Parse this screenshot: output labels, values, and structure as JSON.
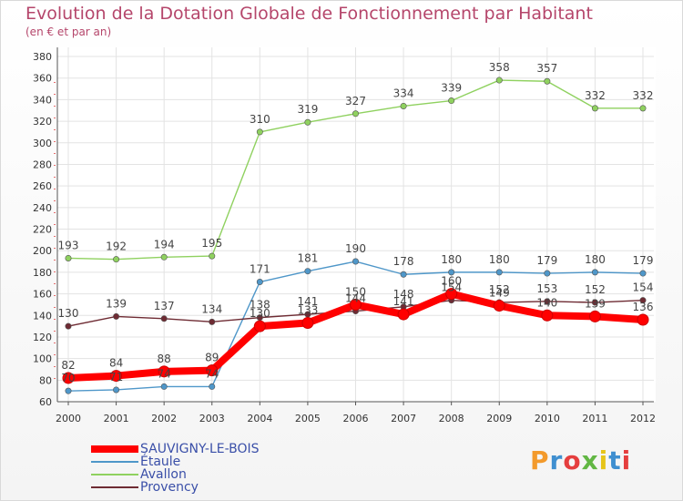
{
  "header": {
    "title": "Evolution de la Dotation Globale de Fonctionnement par Habitant",
    "subtitle": "(en € et par an)"
  },
  "brand": {
    "text": "Proxiti",
    "colors": [
      "#f39a2b",
      "#3f8fd0",
      "#e53e3e",
      "#62b744",
      "#e6c419",
      "#3f8fd0",
      "#e53e3e"
    ]
  },
  "chart_data": {
    "type": "line",
    "title": "Evolution de la Dotation Globale de Fonctionnement par Habitant",
    "subtitle": "(en € et par an)",
    "xlabel": "",
    "ylabel": "",
    "x": [
      "2000",
      "2001",
      "2002",
      "2003",
      "2004",
      "2005",
      "2006",
      "2007",
      "2008",
      "2009",
      "2010",
      "2011",
      "2012"
    ],
    "ylim": [
      60,
      380
    ],
    "yticks": [
      60,
      80,
      100,
      120,
      140,
      160,
      180,
      200,
      220,
      240,
      260,
      280,
      300,
      320,
      340,
      360,
      380
    ],
    "grid": true,
    "legend_position": "bottom-left",
    "series": [
      {
        "name": "SAUVIGNY-LE-BOIS",
        "color": "#ff0000",
        "values": [
          82,
          84,
          88,
          89,
          130,
          133,
          150,
          141,
          160,
          149,
          140,
          139,
          136
        ]
      },
      {
        "name": "Étaule",
        "color": "#4f97c9",
        "values": [
          70,
          71,
          74,
          74,
          171,
          181,
          190,
          178,
          180,
          180,
          179,
          180,
          179
        ]
      },
      {
        "name": "Avallon",
        "color": "#8fd15f",
        "values": [
          193,
          192,
          194,
          195,
          310,
          319,
          327,
          334,
          339,
          358,
          357,
          332,
          332
        ]
      },
      {
        "name": "Provency",
        "color": "#6e2b33",
        "values": [
          130,
          139,
          137,
          134,
          138,
          141,
          144,
          148,
          154,
          152,
          153,
          152,
          154
        ]
      }
    ],
    "data_labels": [
      {
        "series": "SAUVIGNY-LE-BOIS",
        "values": [
          "82",
          "84",
          "88",
          "89",
          "130",
          "133",
          "150",
          "141",
          "160",
          "149",
          "140",
          "139",
          "136"
        ]
      },
      {
        "series": "Étaule",
        "values": [
          "70",
          "71",
          "74",
          "74",
          "171",
          "181",
          "190",
          "178",
          "180",
          "180",
          "179",
          "180",
          "179"
        ]
      },
      {
        "series": "Avallon",
        "values": [
          "193",
          "192",
          "194",
          "195",
          "310",
          "319",
          "327",
          "334",
          "339",
          "358",
          "357",
          "332",
          "332"
        ]
      },
      {
        "series": "Provency",
        "values": [
          "130",
          "139",
          "137",
          "134",
          "138",
          "141",
          "144",
          "148",
          "154",
          "152",
          "153",
          "152",
          "154"
        ]
      }
    ]
  }
}
